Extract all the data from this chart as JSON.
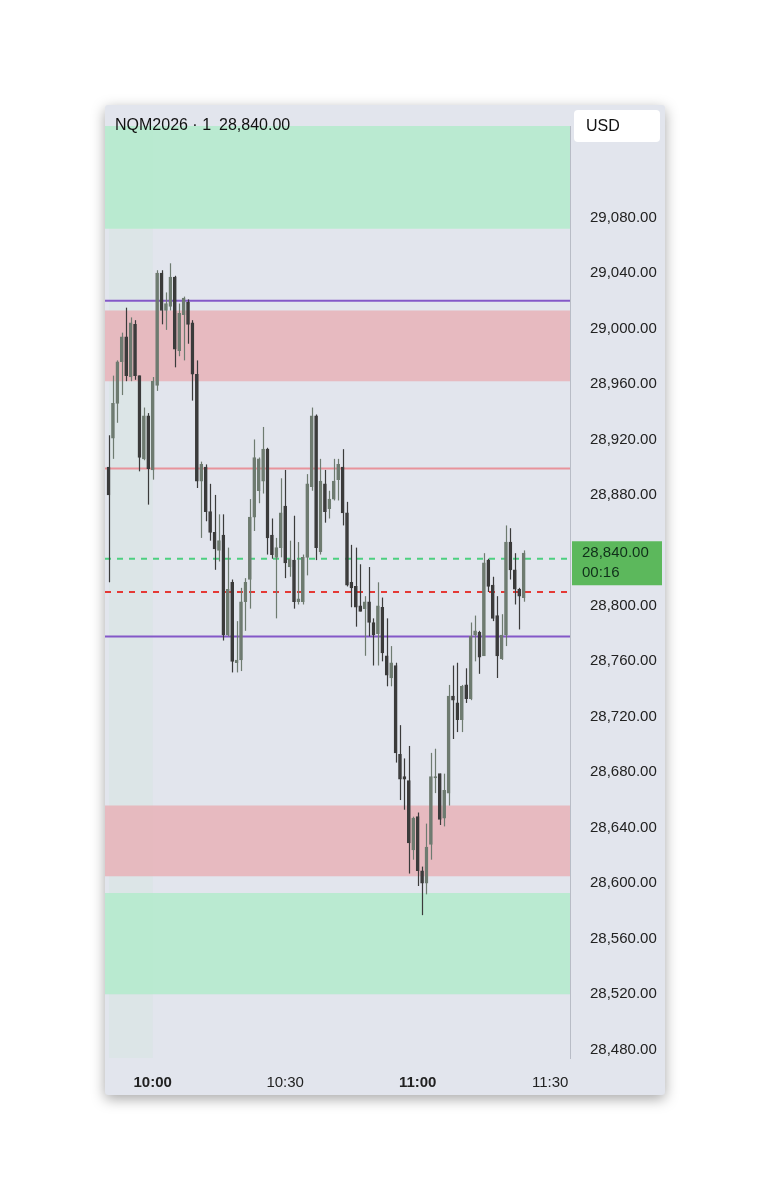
{
  "chart_data": {
    "type": "candlestick",
    "title": "NQM2026 · 1",
    "subtitle": "28,840.00",
    "x": [
      9.8333,
      9.85,
      9.8667,
      9.8833,
      9.9,
      9.9167,
      9.9333,
      9.95,
      9.9667,
      9.9833,
      10,
      10.0167,
      10.0333,
      10.05,
      10.0667,
      10.0833,
      10.1,
      10.1167,
      10.1333,
      10.15,
      10.1667,
      10.1833,
      10.2,
      10.2167,
      10.2333,
      10.25,
      10.2667,
      10.2833,
      10.3,
      10.3167,
      10.3333,
      10.35,
      10.3667,
      10.3833,
      10.4,
      10.4167,
      10.4333,
      10.45,
      10.4667,
      10.4833,
      10.5,
      10.5167,
      10.5333,
      10.55,
      10.5667,
      10.5833,
      10.6,
      10.6167,
      10.6333,
      10.65,
      10.6667,
      10.6833,
      10.7,
      10.7167,
      10.7333,
      10.75,
      10.7667,
      10.7833,
      10.8,
      10.8167,
      10.8333,
      10.85,
      10.8667,
      10.8833,
      10.9,
      10.9167,
      10.9333,
      10.95,
      10.9667,
      10.9833,
      11,
      11.0167,
      11.0333,
      11.05,
      11.0667,
      11.0833,
      11.1,
      11.1167,
      11.1333,
      11.15,
      11.1667,
      11.1833,
      11.2,
      11.2167,
      11.2333,
      11.25,
      11.2667,
      11.2833,
      11.3,
      11.3167,
      11.3333,
      11.35,
      11.3667,
      11.3833,
      11.4
    ],
    "ohlc": [
      [
        28900,
        28923,
        28817,
        28880
      ],
      [
        28921,
        28966,
        28906,
        28946
      ],
      [
        28946,
        28977,
        28932,
        28976
      ],
      [
        28976,
        28997,
        28952,
        28994
      ],
      [
        28994,
        29015,
        28962,
        28966
      ],
      [
        28965,
        29008,
        28962,
        29004
      ],
      [
        29003,
        29006,
        28963,
        28966
      ],
      [
        28966,
        28966,
        28897,
        28907
      ],
      [
        28906,
        28943,
        28905,
        28937
      ],
      [
        28937,
        28939,
        28873,
        28899
      ],
      [
        28898,
        28965,
        28891,
        28962
      ],
      [
        28959,
        29042,
        28955,
        29040
      ],
      [
        29040,
        29042,
        29003,
        29013
      ],
      [
        29013,
        29026,
        28999,
        29018
      ],
      [
        29016,
        29047,
        29013,
        29037
      ],
      [
        29037,
        29038,
        28972,
        28985
      ],
      [
        28984,
        29018,
        28980,
        29011
      ],
      [
        29010,
        29023,
        28977,
        29022
      ],
      [
        29019,
        29021,
        28989,
        29003
      ],
      [
        29004,
        29006,
        28948,
        28967
      ],
      [
        28967,
        28977,
        28885,
        28890
      ],
      [
        28890,
        28904,
        28849,
        28902
      ],
      [
        28900,
        28902,
        28861,
        28868
      ],
      [
        28868,
        28888,
        28847,
        28853
      ],
      [
        28853,
        28880,
        28826,
        28841
      ],
      [
        28840,
        28866,
        28832,
        28847
      ],
      [
        28851,
        28866,
        28775,
        28779
      ],
      [
        28779,
        28842,
        28778,
        28812
      ],
      [
        28817,
        28819,
        28752,
        28760
      ],
      [
        28759,
        28789,
        28752,
        28761
      ],
      [
        28761,
        28813,
        28753,
        28803
      ],
      [
        28803,
        28820,
        28782,
        28817
      ],
      [
        28819,
        28877,
        28798,
        28864
      ],
      [
        28864,
        28920,
        28854,
        28907
      ],
      [
        28883,
        28907,
        28874,
        28906
      ],
      [
        28890,
        28929,
        28881,
        28913
      ],
      [
        28913,
        28914,
        28837,
        28849
      ],
      [
        28851,
        28863,
        28834,
        28837
      ],
      [
        28835,
        28849,
        28791,
        28842
      ],
      [
        28842,
        28892,
        28835,
        28867
      ],
      [
        28872,
        28898,
        28820,
        28831
      ],
      [
        28828,
        28847,
        28821,
        28834
      ],
      [
        28833,
        28865,
        28798,
        28803
      ],
      [
        28803,
        28846,
        28801,
        28805
      ],
      [
        28803,
        28837,
        28801,
        28835
      ],
      [
        28835,
        28895,
        28822,
        28888
      ],
      [
        28886,
        28943,
        28883,
        28937
      ],
      [
        28937,
        28938,
        28833,
        28842
      ],
      [
        28839,
        28906,
        28837,
        28890
      ],
      [
        28888,
        28898,
        28860,
        28868
      ],
      [
        28870,
        28883,
        28863,
        28877
      ],
      [
        28877,
        28906,
        28876,
        28890
      ],
      [
        28891,
        28906,
        28876,
        28902
      ],
      [
        28900,
        28913,
        28858,
        28867
      ],
      [
        28867,
        28875,
        28814,
        28815
      ],
      [
        28817,
        28844,
        28799,
        28813
      ],
      [
        28814,
        28842,
        28785,
        28799
      ],
      [
        28800,
        28830,
        28796,
        28796
      ],
      [
        28798,
        28807,
        28764,
        28803
      ],
      [
        28803,
        28828,
        28778,
        28788
      ],
      [
        28788,
        28791,
        28757,
        28779
      ],
      [
        28780,
        28817,
        28757,
        28800
      ],
      [
        28799,
        28806,
        28760,
        28766
      ],
      [
        28764,
        28791,
        28742,
        28750
      ],
      [
        28748,
        28771,
        28742,
        28759
      ],
      [
        28757,
        28759,
        28687,
        28694
      ],
      [
        28693,
        28714,
        28660,
        28675
      ],
      [
        28677,
        28690,
        28653,
        28675
      ],
      [
        28674,
        28699,
        28607,
        28629
      ],
      [
        28624,
        28648,
        28617,
        28647
      ],
      [
        28648,
        28651,
        28598,
        28609
      ],
      [
        28609,
        28612,
        28577,
        28600
      ],
      [
        28600,
        28643,
        28592,
        28626
      ],
      [
        28628,
        28694,
        28617,
        28677
      ],
      [
        28676,
        28697,
        28665,
        28677
      ],
      [
        28679,
        28679,
        28642,
        28646
      ],
      [
        28647,
        28679,
        28641,
        28667
      ],
      [
        28665,
        28743,
        28656,
        28735
      ],
      [
        28735,
        28757,
        28704,
        28732
      ],
      [
        28730,
        28759,
        28709,
        28718
      ],
      [
        28718,
        28743,
        28709,
        28742
      ],
      [
        28743,
        28755,
        28730,
        28733
      ],
      [
        28733,
        28788,
        28732,
        28778
      ],
      [
        28779,
        28793,
        28760,
        28782
      ],
      [
        28781,
        28782,
        28751,
        28763
      ],
      [
        28764,
        28838,
        28764,
        28831
      ],
      [
        28833,
        28834,
        28810,
        28814
      ],
      [
        28815,
        28821,
        28789,
        28791
      ],
      [
        28793,
        28807,
        28748,
        28764
      ],
      [
        28762,
        28794,
        28761,
        28779
      ],
      [
        28779,
        28858,
        28771,
        28846
      ],
      [
        28846,
        28856,
        28819,
        28826
      ],
      [
        28826,
        28838,
        28801,
        28812
      ],
      [
        28812,
        28813,
        28783,
        28807
      ],
      [
        28806,
        28840,
        28803,
        28838
      ]
    ],
    "colors": [
      "#3b3b3b",
      "#6e7b70",
      "#6e7b70",
      "#6e7b70",
      "#3b3b3b",
      "#6e7b70",
      "#3b3b3b",
      "#3b3b3b",
      "#6e7b70",
      "#3b3b3b",
      "#6e7b70",
      "#6e7b70",
      "#3b3b3b",
      "#6e7b70",
      "#6e7b70",
      "#3b3b3b",
      "#6e7b70",
      "#6e7b70",
      "#3b3b3b",
      "#3b3b3b",
      "#3b3b3b",
      "#6e7b70",
      "#3b3b3b",
      "#3b3b3b",
      "#3b3b3b",
      "#6e7b70",
      "#3b3b3b",
      "#6e7b70",
      "#3b3b3b",
      "#6e7b70",
      "#6e7b70",
      "#6e7b70",
      "#6e7b70",
      "#6e7b70",
      "#6e7b70",
      "#6e7b70",
      "#3b3b3b",
      "#3b3b3b",
      "#6e7b70",
      "#6e7b70",
      "#3b3b3b",
      "#6e7b70",
      "#3b3b3b",
      "#6e7b70",
      "#6e7b70",
      "#6e7b70",
      "#6e7b70",
      "#3b3b3b",
      "#6e7b70",
      "#3b3b3b",
      "#6e7b70",
      "#6e7b70",
      "#6e7b70",
      "#3b3b3b",
      "#3b3b3b",
      "#3b3b3b",
      "#3b3b3b",
      "#3b3b3b",
      "#6e7b70",
      "#3b3b3b",
      "#3b3b3b",
      "#6e7b70",
      "#3b3b3b",
      "#3b3b3b",
      "#6e7b70",
      "#3b3b3b",
      "#3b3b3b",
      "#3b3b3b",
      "#3b3b3b",
      "#6e7b70",
      "#3b3b3b",
      "#3b3b3b",
      "#6e7b70",
      "#6e7b70",
      "#6e7b70",
      "#3b3b3b",
      "#6e7b70",
      "#6e7b70",
      "#3b3b3b",
      "#3b3b3b",
      "#6e7b70",
      "#3b3b3b",
      "#6e7b70",
      "#6e7b70",
      "#3b3b3b",
      "#6e7b70",
      "#3b3b3b",
      "#3b3b3b",
      "#3b3b3b",
      "#6e7b70",
      "#6e7b70",
      "#3b3b3b",
      "#3b3b3b",
      "#3b3b3b",
      "#6e7b70"
    ],
    "xlim": [
      9.82,
      11.575
    ],
    "xticks": [
      {
        "value": 10,
        "label": "10:00"
      },
      {
        "value": 10.5,
        "label": "10:30"
      },
      {
        "value": 11,
        "label": "11:00"
      },
      {
        "value": 11.5,
        "label": "11:30"
      }
    ],
    "ylim": [
      28474,
      29146
    ],
    "yticks": [
      {
        "value": 28480,
        "label": "28,480.00"
      },
      {
        "value": 28520,
        "label": "28,520.00"
      },
      {
        "value": 28560,
        "label": "28,560.00"
      },
      {
        "value": 28600,
        "label": "28,600.00"
      },
      {
        "value": 28640,
        "label": "28,640.00"
      },
      {
        "value": 28680,
        "label": "28,680.00"
      },
      {
        "value": 28720,
        "label": "28,720.00"
      },
      {
        "value": 28760,
        "label": "28,760.00"
      },
      {
        "value": 28800,
        "label": "28,800.00"
      },
      {
        "value": 28880,
        "label": "28,880.00"
      },
      {
        "value": 28920,
        "label": "28,920.00"
      },
      {
        "value": 28960,
        "label": "28,960.00"
      },
      {
        "value": 29000,
        "label": "29,000.00"
      },
      {
        "value": 29040,
        "label": "29,040.00"
      },
      {
        "value": 29080,
        "label": "29,080.00"
      }
    ],
    "bands": [
      {
        "axis": "x",
        "from": 9.835,
        "to": 10,
        "color": "#dbe5e5"
      },
      {
        "axis": "y",
        "from": 29072,
        "to": 29146,
        "color": "#b3ebcb"
      },
      {
        "axis": "y",
        "from": 28520,
        "to": 28593,
        "color": "#b3ebcb"
      },
      {
        "axis": "y",
        "from": 28962,
        "to": 29013,
        "color": "#e7b3b7"
      },
      {
        "axis": "y",
        "from": 28605,
        "to": 28656,
        "color": "#e7b3b7"
      }
    ],
    "ref_lines": [
      {
        "axis": "y",
        "value": 29020,
        "color": "#8458c8"
      },
      {
        "axis": "y",
        "value": 28778,
        "color": "#8458c8"
      },
      {
        "axis": "y",
        "value": 28899,
        "color": "#e8939b"
      },
      {
        "axis": "y",
        "value": 28834,
        "color": "#4cd080",
        "line_style": "dashed"
      },
      {
        "axis": "y",
        "value": 28810,
        "color": "#e53935",
        "line_style": "dashed"
      }
    ],
    "annotations": [
      "USD",
      "28,840.00\n00:16"
    ]
  }
}
